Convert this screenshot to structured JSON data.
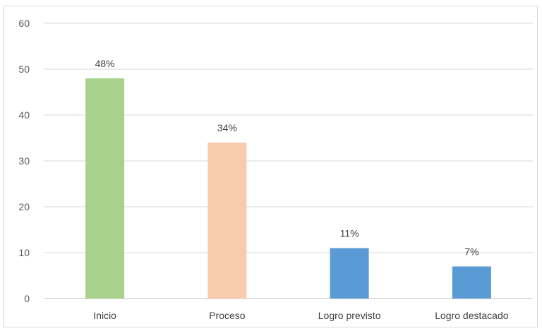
{
  "chart_data": {
    "type": "bar",
    "categories": [
      "Inicio",
      "Proceso",
      "Logro previsto",
      "Logro destacado"
    ],
    "values": [
      48,
      34,
      11,
      7
    ],
    "data_labels": [
      "48%",
      "34%",
      "11%",
      "7%"
    ],
    "colors": [
      "#a9d18e",
      "#f8cbad",
      "#5b9bd5",
      "#5b9bd5"
    ],
    "ylim": [
      0,
      60
    ],
    "yticks": [
      0,
      10,
      20,
      30,
      40,
      50,
      60
    ],
    "grid": true,
    "title": "",
    "xlabel": "",
    "ylabel": ""
  }
}
